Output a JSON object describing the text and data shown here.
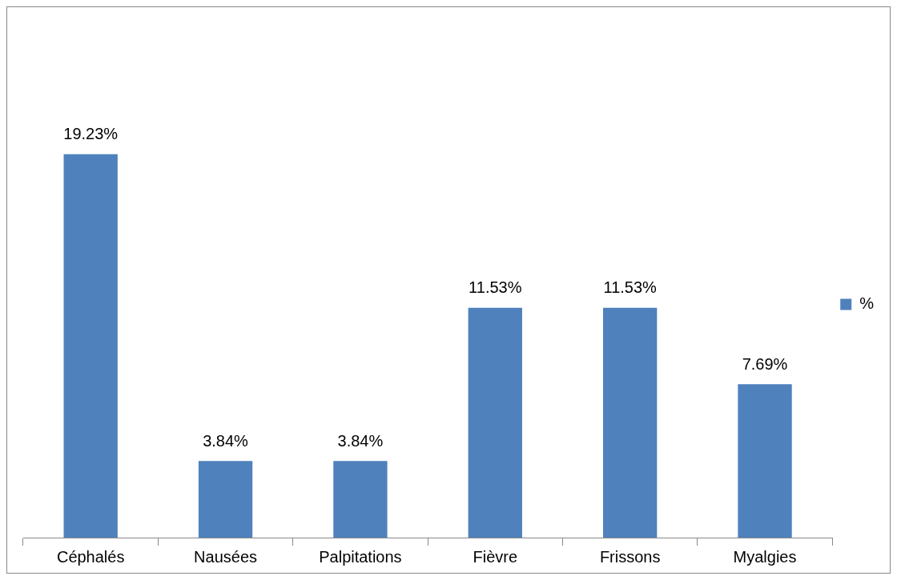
{
  "chart_data": {
    "type": "bar",
    "categories": [
      "Céphalés",
      "Nausées",
      "Palpitations",
      "Fièvre",
      "Frissons",
      "Myalgies"
    ],
    "series": [
      {
        "name": "%",
        "color": "#4f81bd",
        "values": [
          19.23,
          3.84,
          3.84,
          11.53,
          11.53,
          7.69
        ],
        "value_labels": [
          "19.23%",
          "3.84%",
          "3.84%",
          "11.53%",
          "11.53%",
          "7.69%"
        ]
      }
    ],
    "grid": false,
    "legend": "right"
  }
}
